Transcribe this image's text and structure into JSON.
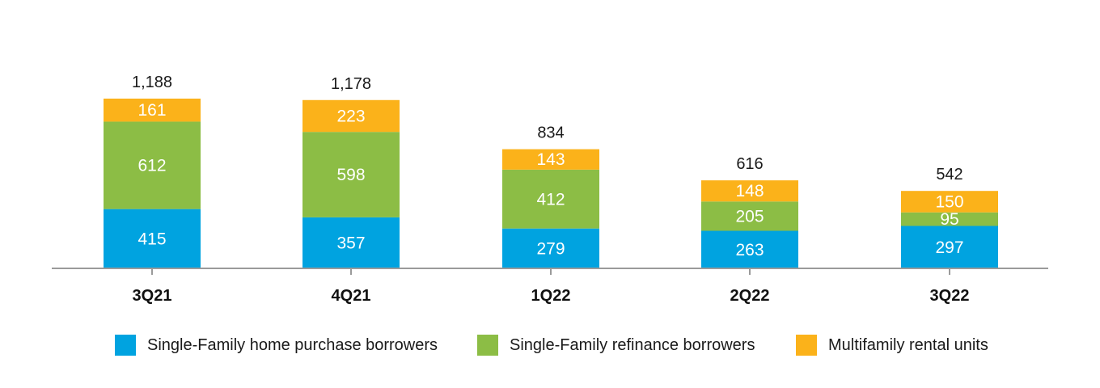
{
  "chart_data": {
    "type": "bar",
    "stacked": true,
    "categories": [
      "3Q21",
      "4Q21",
      "1Q22",
      "2Q22",
      "3Q22"
    ],
    "series": [
      {
        "name": "Single-Family home purchase borrowers",
        "color": "#00a3e0",
        "values": [
          415,
          357,
          279,
          263,
          297
        ]
      },
      {
        "name": "Single-Family refinance borrowers",
        "color": "#8cbd45",
        "values": [
          612,
          598,
          412,
          205,
          95
        ]
      },
      {
        "name": "Multifamily rental units",
        "color": "#fbb21a",
        "values": [
          161,
          223,
          143,
          148,
          150
        ]
      }
    ],
    "totals": [
      "1,188",
      "1,178",
      "834",
      "616",
      "542"
    ],
    "legend_position": "bottom",
    "grid": false
  }
}
